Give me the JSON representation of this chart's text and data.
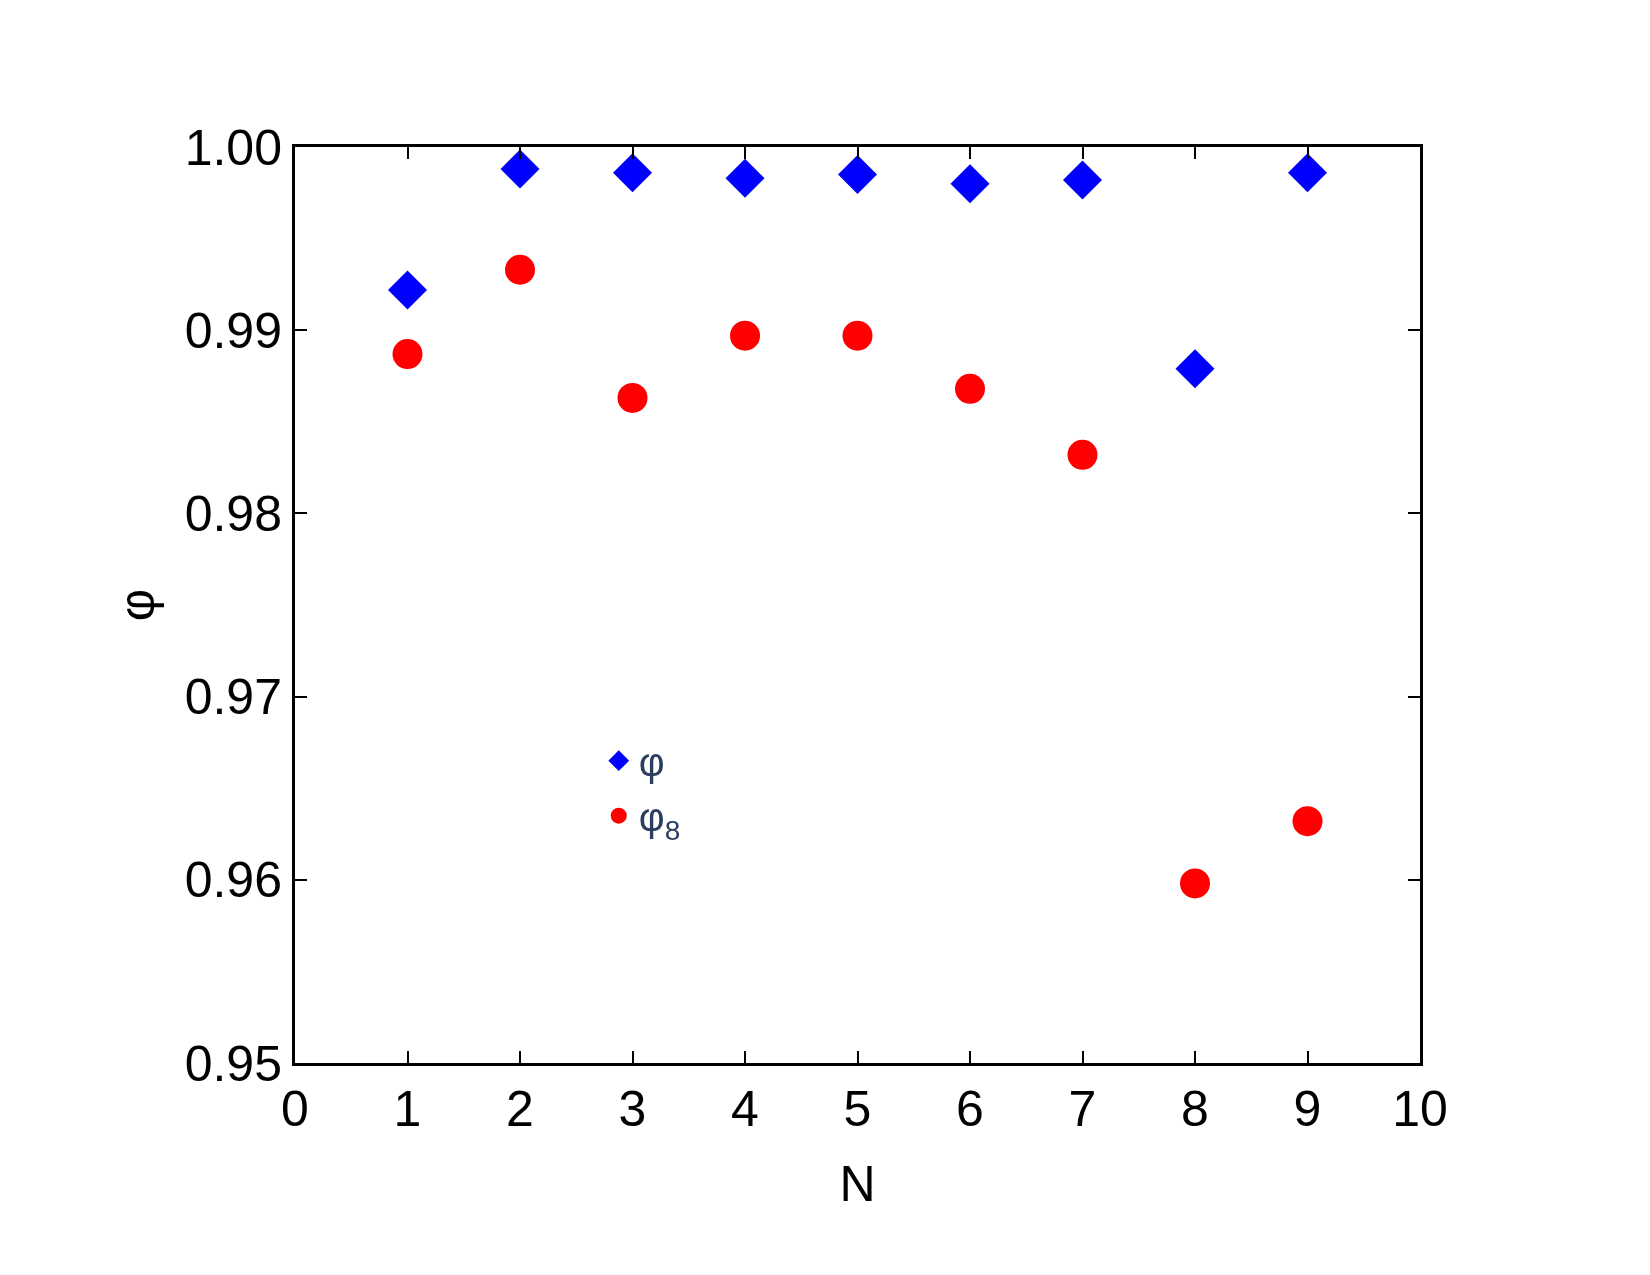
{
  "chart_data": {
    "type": "scatter",
    "xlabel": "N",
    "ylabel": "φ",
    "x": [
      1,
      2,
      3,
      4,
      5,
      6,
      7,
      8,
      9
    ],
    "series": [
      {
        "name": "φ",
        "color": "#0000ff",
        "marker": "diamond",
        "values": [
          0.9922,
          0.9988,
          0.9986,
          0.9983,
          0.9985,
          0.998,
          0.9982,
          0.9879,
          0.9986
        ]
      },
      {
        "name": "φ$_{8}$",
        "color": "#ff0000",
        "marker": "circle",
        "values": [
          0.9887,
          0.9933,
          0.9863,
          0.9897,
          0.9897,
          0.9868,
          0.9832,
          0.9598,
          0.9632
        ]
      }
    ],
    "xlim": [
      0,
      10
    ],
    "xticks": [
      0,
      1,
      2,
      3,
      4,
      5,
      6,
      7,
      8,
      9,
      10
    ],
    "ylim": [
      0.95,
      1.0
    ],
    "yticks": [
      {
        "value": 0.95,
        "label": "0.95"
      },
      {
        "value": 0.96,
        "label": "0.96"
      },
      {
        "value": 0.97,
        "label": "0.97"
      },
      {
        "value": 0.98,
        "label": "0.98"
      },
      {
        "value": 0.99,
        "label": "0.99"
      },
      {
        "value": 1.0,
        "label": "1.00"
      }
    ],
    "legend": "left"
  }
}
